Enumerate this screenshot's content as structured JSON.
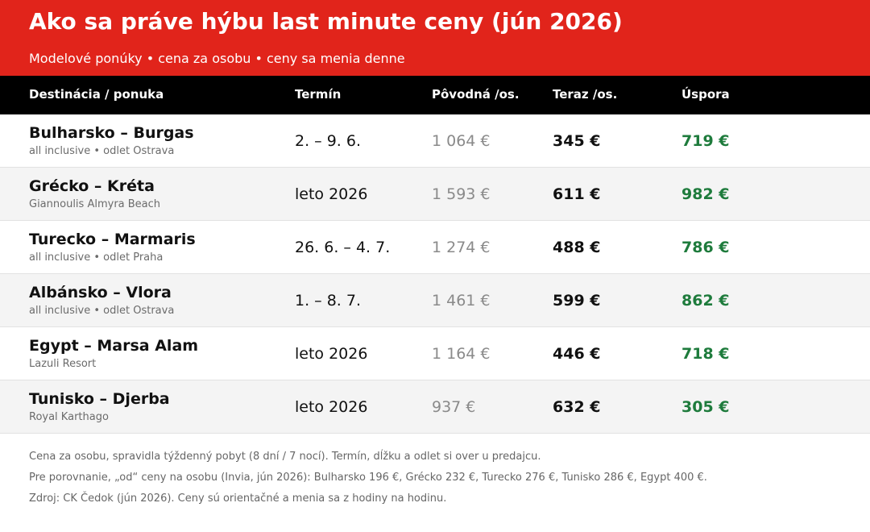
{
  "header": {
    "title": "Ako sa práve hýbu last minute ceny (jún 2026)",
    "subtitle": "Modelové ponúky • cena za osobu • ceny sa menia denne"
  },
  "table": {
    "columns": [
      "Destinácia / ponuka",
      "Termín",
      "Pôvodná /os.",
      "Teraz /os.",
      "Úspora"
    ],
    "rows": [
      {
        "name": "Bulharsko – Burgas",
        "detail": "all inclusive • odlet Ostrava",
        "term": "2. – 9. 6.",
        "original": "1 064 €",
        "now": "345 €",
        "saving": "719 €"
      },
      {
        "name": "Grécko – Kréta",
        "detail": "Giannoulis Almyra Beach",
        "term": "leto 2026",
        "original": "1 593 €",
        "now": "611 €",
        "saving": "982 €"
      },
      {
        "name": "Turecko – Marmaris",
        "detail": "all inclusive • odlet Praha",
        "term": "26. 6. – 4. 7.",
        "original": "1 274 €",
        "now": "488 €",
        "saving": "786 €"
      },
      {
        "name": "Albánsko – Vlora",
        "detail": "all inclusive • odlet Ostrava",
        "term": "1. – 8. 7.",
        "original": "1 461 €",
        "now": "599 €",
        "saving": "862 €"
      },
      {
        "name": "Egypt – Marsa Alam",
        "detail": "Lazuli Resort",
        "term": "leto 2026",
        "original": "1 164 €",
        "now": "446 €",
        "saving": "718 €"
      },
      {
        "name": "Tunisko – Djerba",
        "detail": "Royal Karthago",
        "term": "leto 2026",
        "original": "937 €",
        "now": "632 €",
        "saving": "305 €"
      }
    ]
  },
  "notes": [
    "Cena za osobu, spravidla týždenný pobyt (8 dní / 7 nocí). Termín, dĺžku a odlet si over u predajcu.",
    "Pre porovnanie, „od“ ceny na osobu (Invia, jún 2026): Bulharsko 196 €, Grécko 232 €, Turecko 276 €, Tunisko 286 €, Egypt 400 €.",
    "Zdroj: CK Čedok (jún 2026). Ceny sú orientačné a menia sa z hodiny na hodinu."
  ]
}
